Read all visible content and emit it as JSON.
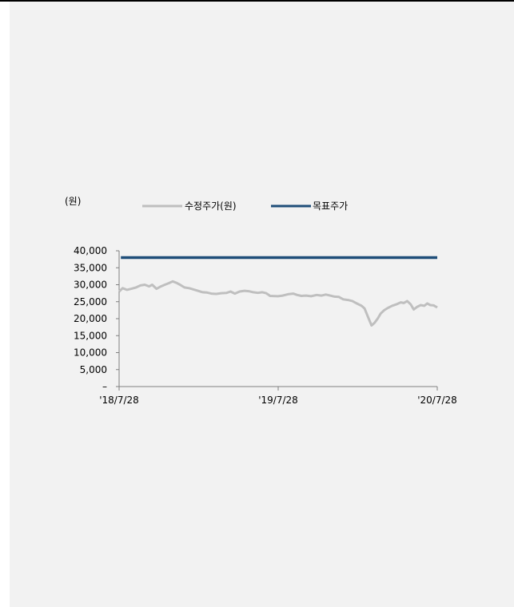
{
  "chart_data": {
    "type": "line",
    "unit_label": "(원)",
    "ylim": [
      0,
      40000
    ],
    "y_ticks": [
      "40,000",
      "35,000",
      "30,000",
      "25,000",
      "20,000",
      "15,000",
      "10,000",
      "5,000",
      "–"
    ],
    "y_tick_values": [
      40000,
      35000,
      30000,
      25000,
      20000,
      15000,
      10000,
      5000,
      0
    ],
    "x_ticks": [
      "'18/7/28",
      "'19/7/28",
      "'20/7/28"
    ],
    "x_range": [
      "2018-07-28",
      "2020-07-28"
    ],
    "grid": false,
    "legend_position": "top",
    "series": [
      {
        "name": "수정주가(원)",
        "color": "#bfbfbf",
        "points": [
          [
            "2018-07-28",
            28000
          ],
          [
            "2018-08-05",
            29000
          ],
          [
            "2018-08-15",
            28500
          ],
          [
            "2018-08-25",
            28800
          ],
          [
            "2018-09-05",
            29200
          ],
          [
            "2018-09-15",
            29800
          ],
          [
            "2018-09-25",
            30000
          ],
          [
            "2018-10-05",
            29500
          ],
          [
            "2018-10-12",
            30000
          ],
          [
            "2018-10-22",
            28800
          ],
          [
            "2018-11-01",
            29500
          ],
          [
            "2018-11-10",
            30000
          ],
          [
            "2018-11-20",
            30500
          ],
          [
            "2018-11-28",
            31000
          ],
          [
            "2018-12-08",
            30500
          ],
          [
            "2018-12-15",
            30000
          ],
          [
            "2018-12-25",
            29200
          ],
          [
            "2019-01-05",
            29000
          ],
          [
            "2019-01-15",
            28600
          ],
          [
            "2019-01-25",
            28200
          ],
          [
            "2019-02-05",
            27800
          ],
          [
            "2019-02-15",
            27700
          ],
          [
            "2019-02-25",
            27400
          ],
          [
            "2019-03-08",
            27300
          ],
          [
            "2019-03-20",
            27500
          ],
          [
            "2019-04-01",
            27600
          ],
          [
            "2019-04-10",
            28000
          ],
          [
            "2019-04-20",
            27400
          ],
          [
            "2019-05-01",
            28000
          ],
          [
            "2019-05-12",
            28200
          ],
          [
            "2019-05-22",
            28100
          ],
          [
            "2019-06-01",
            27800
          ],
          [
            "2019-06-12",
            27600
          ],
          [
            "2019-06-22",
            27800
          ],
          [
            "2019-07-01",
            27500
          ],
          [
            "2019-07-10",
            26700
          ],
          [
            "2019-07-28",
            26600
          ],
          [
            "2019-08-08",
            26800
          ],
          [
            "2019-08-20",
            27200
          ],
          [
            "2019-09-01",
            27400
          ],
          [
            "2019-09-10",
            27000
          ],
          [
            "2019-09-20",
            26700
          ],
          [
            "2019-10-01",
            26800
          ],
          [
            "2019-10-12",
            26600
          ],
          [
            "2019-10-25",
            27000
          ],
          [
            "2019-11-05",
            26800
          ],
          [
            "2019-11-15",
            27100
          ],
          [
            "2019-11-25",
            26800
          ],
          [
            "2019-12-05",
            26500
          ],
          [
            "2019-12-15",
            26400
          ],
          [
            "2019-12-25",
            25700
          ],
          [
            "2020-01-05",
            25500
          ],
          [
            "2020-01-15",
            25200
          ],
          [
            "2020-01-25",
            24500
          ],
          [
            "2020-02-05",
            23800
          ],
          [
            "2020-02-12",
            23000
          ],
          [
            "2020-02-20",
            20500
          ],
          [
            "2020-02-28",
            18000
          ],
          [
            "2020-03-06",
            18800
          ],
          [
            "2020-03-13",
            20000
          ],
          [
            "2020-03-20",
            21500
          ],
          [
            "2020-03-28",
            22500
          ],
          [
            "2020-04-06",
            23200
          ],
          [
            "2020-04-15",
            23800
          ],
          [
            "2020-04-25",
            24200
          ],
          [
            "2020-05-05",
            24800
          ],
          [
            "2020-05-12",
            24600
          ],
          [
            "2020-05-20",
            25200
          ],
          [
            "2020-05-28",
            24200
          ],
          [
            "2020-06-04",
            22700
          ],
          [
            "2020-06-12",
            23500
          ],
          [
            "2020-06-20",
            24000
          ],
          [
            "2020-06-28",
            23800
          ],
          [
            "2020-07-05",
            24500
          ],
          [
            "2020-07-12",
            24000
          ],
          [
            "2020-07-20",
            23900
          ],
          [
            "2020-07-28",
            23300
          ]
        ]
      },
      {
        "name": "목표주가",
        "color": "#1f4e79",
        "points": [
          [
            "2018-08-01",
            38000
          ],
          [
            "2020-07-28",
            38000
          ]
        ]
      }
    ]
  }
}
